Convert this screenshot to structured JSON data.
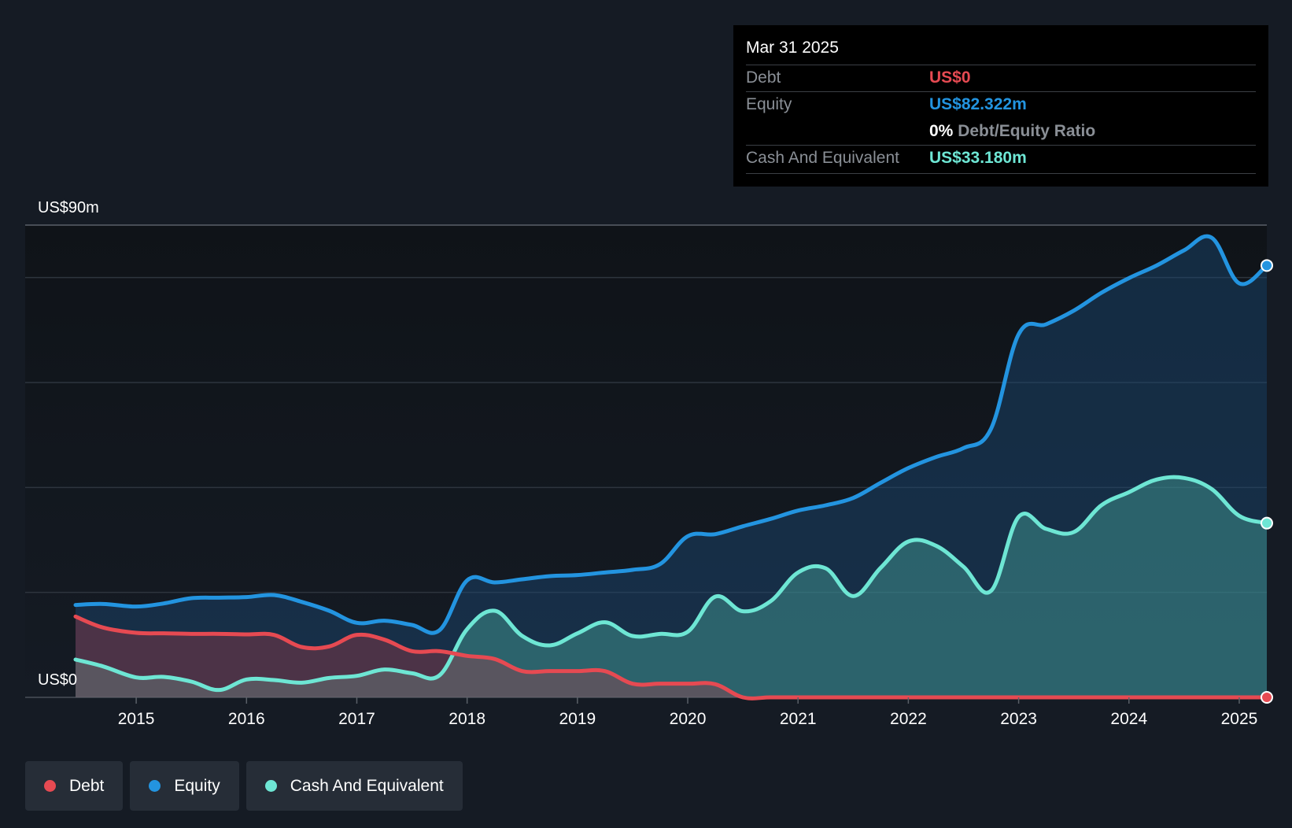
{
  "tooltip": {
    "date": "Mar 31 2025",
    "debt_label": "Debt",
    "debt_value": "US$0",
    "equity_label": "Equity",
    "equity_value": "US$82.322m",
    "ratio_value": "0%",
    "ratio_label": "Debt/Equity Ratio",
    "cash_label": "Cash And Equivalent",
    "cash_value": "US$33.180m"
  },
  "legend": [
    {
      "label": "Debt",
      "color": "#e64a52"
    },
    {
      "label": "Equity",
      "color": "#2394e0"
    },
    {
      "label": "Cash And Equivalent",
      "color": "#6ee6d4"
    }
  ],
  "colors": {
    "debt": "#e64a52",
    "equity": "#2394e0",
    "cash": "#6ee6d4",
    "background": "#151b24"
  },
  "chart_data": {
    "type": "area",
    "title": "",
    "xlabel": "",
    "ylabel": "",
    "ylim": [
      0,
      90
    ],
    "xlim": [
      2014.2,
      2025.25
    ],
    "y_axis_labels": [
      {
        "value": 90,
        "label": "US$90m"
      },
      {
        "value": 0,
        "label": "US$0"
      }
    ],
    "gridlines": [
      0,
      20,
      40,
      60,
      80,
      90
    ],
    "x_ticks": [
      2015,
      2016,
      2017,
      2018,
      2019,
      2020,
      2021,
      2022,
      2023,
      2024,
      2025
    ],
    "x_tick_labels": [
      "2015",
      "2016",
      "2017",
      "2018",
      "2019",
      "2020",
      "2021",
      "2022",
      "2023",
      "2024",
      "2025"
    ],
    "series": [
      {
        "name": "Equity",
        "color": "#2394e0",
        "points": [
          [
            2014.45,
            17.6
          ],
          [
            2014.7,
            17.8
          ],
          [
            2015.0,
            17.3
          ],
          [
            2015.25,
            17.9
          ],
          [
            2015.5,
            18.9
          ],
          [
            2015.75,
            19.0
          ],
          [
            2016.0,
            19.1
          ],
          [
            2016.25,
            19.5
          ],
          [
            2016.5,
            18.2
          ],
          [
            2016.75,
            16.5
          ],
          [
            2017.0,
            14.2
          ],
          [
            2017.25,
            14.6
          ],
          [
            2017.5,
            13.8
          ],
          [
            2017.75,
            12.8
          ],
          [
            2018.0,
            22.3
          ],
          [
            2018.25,
            21.9
          ],
          [
            2018.5,
            22.5
          ],
          [
            2018.75,
            23.1
          ],
          [
            2019.0,
            23.3
          ],
          [
            2019.25,
            23.8
          ],
          [
            2019.5,
            24.3
          ],
          [
            2019.75,
            25.4
          ],
          [
            2020.0,
            30.7
          ],
          [
            2020.25,
            31.1
          ],
          [
            2020.5,
            32.6
          ],
          [
            2020.75,
            34.0
          ],
          [
            2021.0,
            35.6
          ],
          [
            2021.25,
            36.6
          ],
          [
            2021.5,
            38.0
          ],
          [
            2021.75,
            40.9
          ],
          [
            2022.0,
            43.7
          ],
          [
            2022.25,
            45.8
          ],
          [
            2022.5,
            47.5
          ],
          [
            2022.75,
            51.2
          ],
          [
            2023.0,
            69.2
          ],
          [
            2023.25,
            71.1
          ],
          [
            2023.5,
            73.7
          ],
          [
            2023.75,
            77.1
          ],
          [
            2024.0,
            79.9
          ],
          [
            2024.25,
            82.3
          ],
          [
            2024.5,
            85.2
          ],
          [
            2024.75,
            87.6
          ],
          [
            2025.0,
            78.9
          ],
          [
            2025.25,
            82.3
          ]
        ]
      },
      {
        "name": "Cash And Equivalent",
        "color": "#6ee6d4",
        "points": [
          [
            2014.45,
            7.2
          ],
          [
            2014.7,
            5.9
          ],
          [
            2015.0,
            3.8
          ],
          [
            2015.25,
            3.9
          ],
          [
            2015.5,
            3.0
          ],
          [
            2015.75,
            1.4
          ],
          [
            2016.0,
            3.4
          ],
          [
            2016.25,
            3.3
          ],
          [
            2016.5,
            2.8
          ],
          [
            2016.75,
            3.7
          ],
          [
            2017.0,
            4.1
          ],
          [
            2017.25,
            5.3
          ],
          [
            2017.5,
            4.6
          ],
          [
            2017.75,
            4.2
          ],
          [
            2018.0,
            13.0
          ],
          [
            2018.25,
            16.5
          ],
          [
            2018.5,
            11.7
          ],
          [
            2018.75,
            9.9
          ],
          [
            2019.0,
            12.2
          ],
          [
            2019.25,
            14.3
          ],
          [
            2019.5,
            11.7
          ],
          [
            2019.75,
            12.1
          ],
          [
            2020.0,
            12.5
          ],
          [
            2020.25,
            19.2
          ],
          [
            2020.5,
            16.4
          ],
          [
            2020.75,
            18.3
          ],
          [
            2021.0,
            23.8
          ],
          [
            2021.25,
            24.6
          ],
          [
            2021.5,
            19.3
          ],
          [
            2021.75,
            24.7
          ],
          [
            2022.0,
            29.7
          ],
          [
            2022.25,
            28.9
          ],
          [
            2022.5,
            24.9
          ],
          [
            2022.75,
            20.3
          ],
          [
            2023.0,
            34.4
          ],
          [
            2023.25,
            32.1
          ],
          [
            2023.5,
            31.5
          ],
          [
            2023.75,
            36.6
          ],
          [
            2024.0,
            39.1
          ],
          [
            2024.25,
            41.5
          ],
          [
            2024.5,
            41.8
          ],
          [
            2024.75,
            39.7
          ],
          [
            2025.0,
            34.6
          ],
          [
            2025.25,
            33.2
          ]
        ]
      },
      {
        "name": "Debt",
        "color": "#e64a52",
        "points": [
          [
            2014.45,
            15.4
          ],
          [
            2014.7,
            13.3
          ],
          [
            2015.0,
            12.3
          ],
          [
            2015.25,
            12.2
          ],
          [
            2015.5,
            12.1
          ],
          [
            2015.75,
            12.1
          ],
          [
            2016.0,
            12.0
          ],
          [
            2016.25,
            11.9
          ],
          [
            2016.5,
            9.6
          ],
          [
            2016.75,
            9.7
          ],
          [
            2017.0,
            11.9
          ],
          [
            2017.25,
            11.0
          ],
          [
            2017.5,
            8.8
          ],
          [
            2017.75,
            8.8
          ],
          [
            2018.0,
            7.9
          ],
          [
            2018.25,
            7.3
          ],
          [
            2018.5,
            5.0
          ],
          [
            2018.75,
            5.0
          ],
          [
            2019.0,
            5.0
          ],
          [
            2019.25,
            5.0
          ],
          [
            2019.5,
            2.6
          ],
          [
            2019.75,
            2.6
          ],
          [
            2020.0,
            2.6
          ],
          [
            2020.25,
            2.5
          ],
          [
            2020.5,
            0
          ],
          [
            2020.75,
            0
          ],
          [
            2021.0,
            0
          ],
          [
            2021.5,
            0
          ],
          [
            2022.0,
            0
          ],
          [
            2022.5,
            0
          ],
          [
            2023.0,
            0
          ],
          [
            2023.5,
            0
          ],
          [
            2024.0,
            0
          ],
          [
            2024.5,
            0
          ],
          [
            2025.0,
            0
          ],
          [
            2025.25,
            0
          ]
        ]
      }
    ]
  }
}
